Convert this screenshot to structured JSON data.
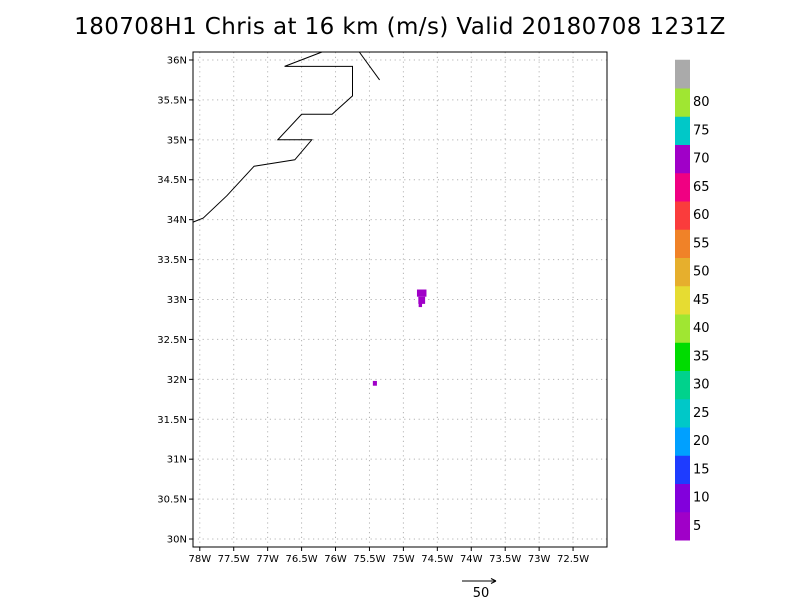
{
  "header": {
    "title": "180708H1 Chris at 16 km (m/s) Valid 20180708 1231Z"
  },
  "map": {
    "lon_range": [
      -78.1,
      -72.0
    ],
    "lat_range": [
      29.9,
      36.1
    ],
    "lat_ticks": [
      {
        "v": 36.0,
        "label": "36N"
      },
      {
        "v": 35.5,
        "label": "35.5N"
      },
      {
        "v": 35.0,
        "label": "35N"
      },
      {
        "v": 34.5,
        "label": "34.5N"
      },
      {
        "v": 34.0,
        "label": "34N"
      },
      {
        "v": 33.5,
        "label": "33.5N"
      },
      {
        "v": 33.0,
        "label": "33N"
      },
      {
        "v": 32.5,
        "label": "32.5N"
      },
      {
        "v": 32.0,
        "label": "32N"
      },
      {
        "v": 31.5,
        "label": "31.5N"
      },
      {
        "v": 31.0,
        "label": "31N"
      },
      {
        "v": 30.5,
        "label": "30.5N"
      },
      {
        "v": 30.0,
        "label": "30N"
      }
    ],
    "lon_ticks": [
      {
        "v": -78.0,
        "label": "78W"
      },
      {
        "v": -77.5,
        "label": "77.5W"
      },
      {
        "v": -77.0,
        "label": "77W"
      },
      {
        "v": -76.5,
        "label": "76.5W"
      },
      {
        "v": -76.0,
        "label": "76W"
      },
      {
        "v": -75.5,
        "label": "75.5W"
      },
      {
        "v": -75.0,
        "label": "75W"
      },
      {
        "v": -74.5,
        "label": "74.5W"
      },
      {
        "v": -74.0,
        "label": "74W"
      },
      {
        "v": -73.5,
        "label": "73.5W"
      },
      {
        "v": -73.0,
        "label": "73W"
      },
      {
        "v": -72.5,
        "label": "72.5W"
      }
    ],
    "coastline": [
      [
        -78.1,
        33.97
      ],
      [
        -77.95,
        34.02
      ],
      [
        -77.6,
        34.3
      ],
      [
        -77.2,
        34.67
      ],
      [
        -76.6,
        34.75
      ],
      [
        -76.35,
        35.0
      ],
      [
        -76.85,
        35.0
      ],
      [
        -76.5,
        35.32
      ],
      [
        -76.05,
        35.32
      ],
      [
        -75.75,
        35.55
      ],
      [
        -75.75,
        35.92
      ],
      [
        -76.75,
        35.92
      ],
      [
        -76.2,
        36.1
      ]
    ],
    "coastline2": [
      [
        -75.65,
        36.1
      ],
      [
        -75.35,
        35.75
      ]
    ],
    "wind_cells": [
      {
        "lon": -74.73,
        "lat": 33.08,
        "w": 0.14,
        "h": 0.09,
        "speed": 2,
        "color": "#a000c8"
      },
      {
        "lon": -74.73,
        "lat": 32.99,
        "w": 0.1,
        "h": 0.09,
        "speed": 2,
        "color": "#a000c8"
      },
      {
        "lon": -74.75,
        "lat": 32.93,
        "w": 0.05,
        "h": 0.05,
        "speed": 2,
        "color": "#a000c8"
      },
      {
        "lon": -75.42,
        "lat": 31.95,
        "w": 0.06,
        "h": 0.06,
        "speed": 2,
        "color": "#a000c8"
      }
    ]
  },
  "colorbar": {
    "segments": [
      {
        "color": "#a000c8"
      },
      {
        "color": "#8200dc"
      },
      {
        "color": "#1e3cff"
      },
      {
        "color": "#00a0ff"
      },
      {
        "color": "#00c8c8"
      },
      {
        "color": "#00d28c"
      },
      {
        "color": "#00dc00"
      },
      {
        "color": "#a0e632"
      },
      {
        "color": "#e6dc32"
      },
      {
        "color": "#e6af2d"
      },
      {
        "color": "#f08228"
      },
      {
        "color": "#fa3c3c"
      },
      {
        "color": "#f00082"
      },
      {
        "color": "#a000c8"
      },
      {
        "color": "#00c8c8"
      },
      {
        "color": "#a0e632"
      },
      {
        "color": "#aaaaaa"
      }
    ],
    "labels": [
      "5",
      "10",
      "15",
      "20",
      "25",
      "30",
      "35",
      "40",
      "45",
      "50",
      "55",
      "60",
      "65",
      "70",
      "75",
      "80"
    ]
  },
  "scale_arrow": {
    "label": "50"
  }
}
